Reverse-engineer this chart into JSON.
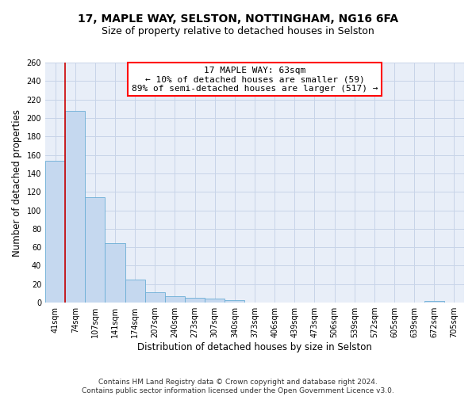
{
  "title": "17, MAPLE WAY, SELSTON, NOTTINGHAM, NG16 6FA",
  "subtitle": "Size of property relative to detached houses in Selston",
  "xlabel": "Distribution of detached houses by size in Selston",
  "ylabel": "Number of detached properties",
  "footer": "Contains HM Land Registry data © Crown copyright and database right 2024.\nContains public sector information licensed under the Open Government Licence v3.0.",
  "bin_labels": [
    "41sqm",
    "74sqm",
    "107sqm",
    "141sqm",
    "174sqm",
    "207sqm",
    "240sqm",
    "273sqm",
    "307sqm",
    "340sqm",
    "373sqm",
    "406sqm",
    "439sqm",
    "473sqm",
    "506sqm",
    "539sqm",
    "572sqm",
    "605sqm",
    "639sqm",
    "672sqm",
    "705sqm"
  ],
  "bar_heights": [
    154,
    208,
    114,
    64,
    25,
    11,
    7,
    5,
    4,
    3,
    0,
    0,
    0,
    0,
    0,
    0,
    0,
    0,
    0,
    2,
    0
  ],
  "bar_color": "#c5d8ef",
  "bar_edge_color": "#6baed6",
  "grid_color": "#c8d4e8",
  "background_color": "#e8eef8",
  "annotation_text": "17 MAPLE WAY: 63sqm\n← 10% of detached houses are smaller (59)\n89% of semi-detached houses are larger (517) →",
  "marker_color": "#cc0000",
  "ylim": [
    0,
    260
  ],
  "title_fontsize": 10,
  "subtitle_fontsize": 9,
  "xlabel_fontsize": 8.5,
  "ylabel_fontsize": 8.5,
  "tick_fontsize": 7,
  "footer_fontsize": 6.5,
  "annotation_fontsize": 8
}
